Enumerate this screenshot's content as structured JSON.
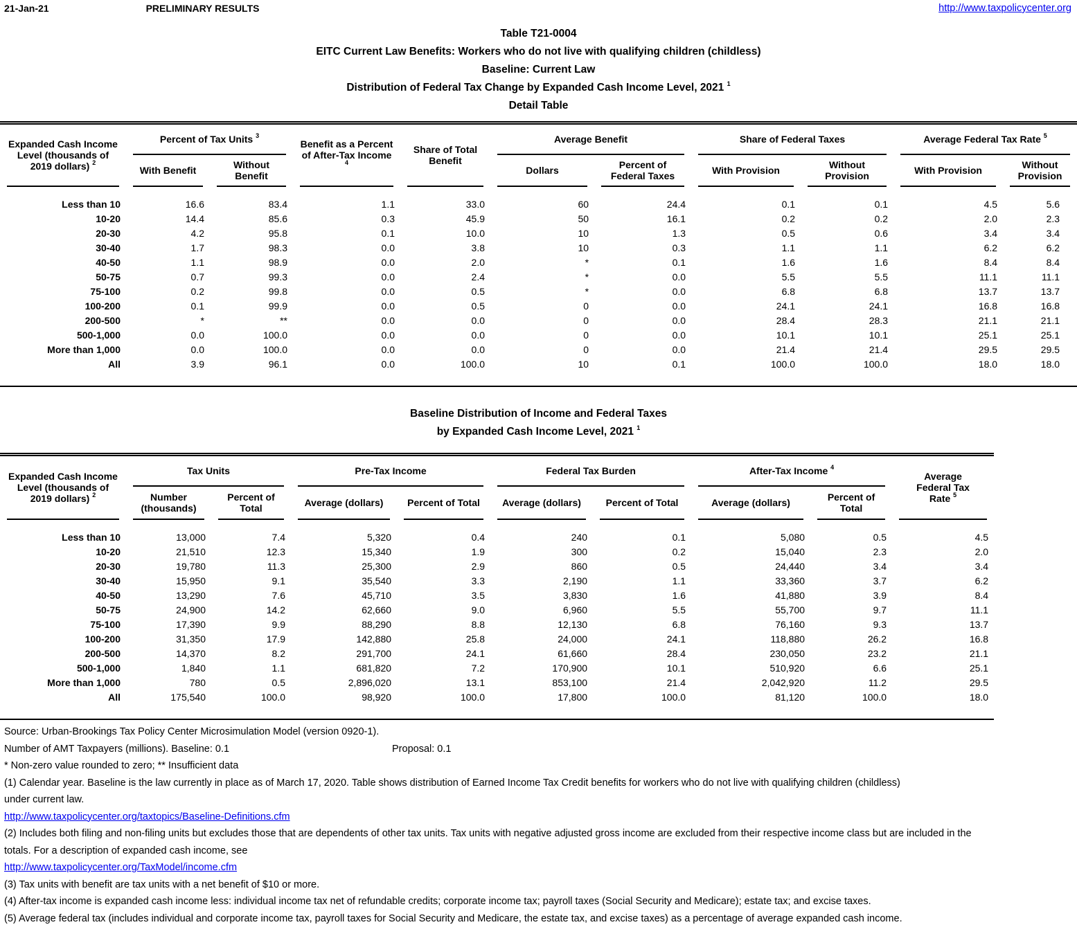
{
  "page_header": {
    "date": "21-Jan-21",
    "status": "PRELIMINARY RESULTS",
    "site_link": "http://www.taxpolicycenter.org"
  },
  "title_block": {
    "table_number": "Table T21-0004",
    "subtitle1": "EITC Current Law Benefits: Workers who do not live with qualifying children (childless)",
    "subtitle2": "Baseline: Current Law",
    "subtitle3": "Distribution of Federal Tax Change by Expanded Cash Income Level, 2021",
    "subtitle3_sup": "1",
    "subtitle4": "Detail Table"
  },
  "table1": {
    "income_header": "Expanded Cash Income Level (thousands of 2019 dollars)",
    "income_header_sup": "2",
    "groups": {
      "pct_tax_units": "Percent of Tax Units",
      "pct_tax_units_sup": "3",
      "benefit_pct_ati": "Benefit as a Percent of After-Tax Income",
      "benefit_pct_ati_sup": "4",
      "share_total_benefit": "Share of Total Benefit",
      "average_benefit": "Average Benefit",
      "share_federal_taxes": "Share of Federal Taxes",
      "avg_federal_tax_rate": "Average Federal Tax Rate",
      "avg_federal_tax_rate_sup": "5"
    },
    "subheaders": {
      "with_benefit": "With Benefit",
      "without_benefit": "Without Benefit",
      "dollars": "Dollars",
      "pct_federal_taxes": "Percent of Federal Taxes",
      "with_provision": "With Provision",
      "without_provision": "Without Provision"
    },
    "rows": [
      [
        "Less than 10",
        "16.6",
        "83.4",
        "1.1",
        "33.0",
        "60",
        "24.4",
        "0.1",
        "0.1",
        "4.5",
        "5.6"
      ],
      [
        "10-20",
        "14.4",
        "85.6",
        "0.3",
        "45.9",
        "50",
        "16.1",
        "0.2",
        "0.2",
        "2.0",
        "2.3"
      ],
      [
        "20-30",
        "4.2",
        "95.8",
        "0.1",
        "10.0",
        "10",
        "1.3",
        "0.5",
        "0.6",
        "3.4",
        "3.4"
      ],
      [
        "30-40",
        "1.7",
        "98.3",
        "0.0",
        "3.8",
        "10",
        "0.3",
        "1.1",
        "1.1",
        "6.2",
        "6.2"
      ],
      [
        "40-50",
        "1.1",
        "98.9",
        "0.0",
        "2.0",
        "*",
        "0.1",
        "1.6",
        "1.6",
        "8.4",
        "8.4"
      ],
      [
        "50-75",
        "0.7",
        "99.3",
        "0.0",
        "2.4",
        "*",
        "0.0",
        "5.5",
        "5.5",
        "11.1",
        "11.1"
      ],
      [
        "75-100",
        "0.2",
        "99.8",
        "0.0",
        "0.5",
        "*",
        "0.0",
        "6.8",
        "6.8",
        "13.7",
        "13.7"
      ],
      [
        "100-200",
        "0.1",
        "99.9",
        "0.0",
        "0.5",
        "0",
        "0.0",
        "24.1",
        "24.1",
        "16.8",
        "16.8"
      ],
      [
        "200-500",
        "*",
        "**",
        "0.0",
        "0.0",
        "0",
        "0.0",
        "28.4",
        "28.3",
        "21.1",
        "21.1"
      ],
      [
        "500-1,000",
        "0.0",
        "100.0",
        "0.0",
        "0.0",
        "0",
        "0.0",
        "10.1",
        "10.1",
        "25.1",
        "25.1"
      ],
      [
        "More than 1,000",
        "0.0",
        "100.0",
        "0.0",
        "0.0",
        "0",
        "0.0",
        "21.4",
        "21.4",
        "29.5",
        "29.5"
      ],
      [
        "All",
        "3.9",
        "96.1",
        "0.0",
        "100.0",
        "10",
        "0.1",
        "100.0",
        "100.0",
        "18.0",
        "18.0"
      ]
    ]
  },
  "table2": {
    "section_title_line1": "Baseline Distribution of Income and Federal Taxes",
    "section_title_line2": "by Expanded Cash Income Level, 2021",
    "section_title_sup": "1",
    "income_header": "Expanded Cash Income Level (thousands of 2019 dollars)",
    "income_header_sup": "2",
    "groups": {
      "tax_units": "Tax Units",
      "pre_tax_income": "Pre-Tax Income",
      "federal_tax_burden": "Federal Tax Burden",
      "after_tax_income": "After-Tax Income",
      "after_tax_income_sup": "4",
      "avg_federal_tax_rate_l1": "Average",
      "avg_federal_tax_rate_l2": "Federal Tax",
      "avg_federal_tax_rate_l3": "Rate",
      "avg_federal_tax_rate_sup": "5"
    },
    "subheaders": {
      "number_thousands": "Number (thousands)",
      "percent_of_total": "Percent of Total",
      "average_dollars": "Average (dollars)"
    },
    "rows": [
      [
        "Less than 10",
        "13,000",
        "7.4",
        "5,320",
        "0.4",
        "240",
        "0.1",
        "5,080",
        "0.5",
        "4.5"
      ],
      [
        "10-20",
        "21,510",
        "12.3",
        "15,340",
        "1.9",
        "300",
        "0.2",
        "15,040",
        "2.3",
        "2.0"
      ],
      [
        "20-30",
        "19,780",
        "11.3",
        "25,300",
        "2.9",
        "860",
        "0.5",
        "24,440",
        "3.4",
        "3.4"
      ],
      [
        "30-40",
        "15,950",
        "9.1",
        "35,540",
        "3.3",
        "2,190",
        "1.1",
        "33,360",
        "3.7",
        "6.2"
      ],
      [
        "40-50",
        "13,290",
        "7.6",
        "45,710",
        "3.5",
        "3,830",
        "1.6",
        "41,880",
        "3.9",
        "8.4"
      ],
      [
        "50-75",
        "24,900",
        "14.2",
        "62,660",
        "9.0",
        "6,960",
        "5.5",
        "55,700",
        "9.7",
        "11.1"
      ],
      [
        "75-100",
        "17,390",
        "9.9",
        "88,290",
        "8.8",
        "12,130",
        "6.8",
        "76,160",
        "9.3",
        "13.7"
      ],
      [
        "100-200",
        "31,350",
        "17.9",
        "142,880",
        "25.8",
        "24,000",
        "24.1",
        "118,880",
        "26.2",
        "16.8"
      ],
      [
        "200-500",
        "14,370",
        "8.2",
        "291,700",
        "24.1",
        "61,660",
        "28.4",
        "230,050",
        "23.2",
        "21.1"
      ],
      [
        "500-1,000",
        "1,840",
        "1.1",
        "681,820",
        "7.2",
        "170,900",
        "10.1",
        "510,920",
        "6.6",
        "25.1"
      ],
      [
        "More than 1,000",
        "780",
        "0.5",
        "2,896,020",
        "13.1",
        "853,100",
        "21.4",
        "2,042,920",
        "11.2",
        "29.5"
      ],
      [
        "All",
        "175,540",
        "100.0",
        "98,920",
        "100.0",
        "17,800",
        "100.0",
        "81,120",
        "100.0",
        "18.0"
      ]
    ]
  },
  "footnotes": {
    "source": "Source: Urban-Brookings Tax Policy Center Microsimulation Model (version 0920-1).",
    "amt_label": "Number of AMT Taxpayers (millions).  Baseline: 0.1",
    "amt_proposal": "Proposal: 0.1",
    "asterisk_note": "* Non-zero value rounded to zero; ** Insufficient data",
    "note1_line1": "(1) Calendar year. Baseline is the law currently in place as of March 17, 2020. Table shows distribution of Earned Income Tax Credit benefits for workers who do not live with qualifying children (childless)",
    "note1_line2": "under current law.",
    "link1": "http://www.taxpolicycenter.org/taxtopics/Baseline-Definitions.cfm",
    "note2_line1": "(2) Includes both filing and non-filing units but excludes those that are dependents of other tax units. Tax units with negative adjusted gross income are excluded from their respective income class but are included in the",
    "note2_line2": "totals. For a description of expanded cash income, see",
    "link2": "http://www.taxpolicycenter.org/TaxModel/income.cfm",
    "note3": "(3) Tax units with benefit are tax units with a net benefit of $10 or more.",
    "note4": "(4) After-tax income is expanded cash income less: individual income tax net of refundable credits; corporate income tax; payroll taxes (Social Security and Medicare); estate tax; and excise taxes.",
    "note5": "(5) Average federal tax (includes individual and corporate income tax, payroll taxes for Social Security and Medicare, the estate tax, and excise taxes) as a percentage of average expanded cash income."
  },
  "colors": {
    "link_blue": "#0000EE",
    "text": "#000000",
    "background": "#FFFFFF"
  }
}
